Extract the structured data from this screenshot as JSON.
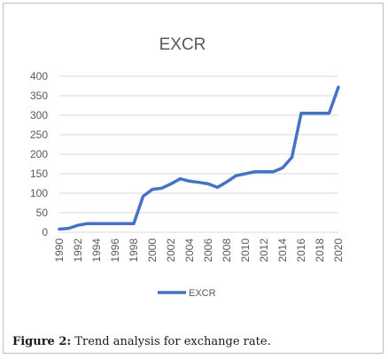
{
  "colors": {
    "line": "#4472C4",
    "grid": "#d9d9d9",
    "text": "#595959"
  },
  "caption": {
    "label": "Figure 2:",
    "text": " Trend analysis for exchange rate."
  },
  "chart_data": {
    "type": "line",
    "title": "EXCR",
    "xlabel": "",
    "ylabel": "",
    "ylim": [
      0,
      400
    ],
    "yticks": [
      0,
      50,
      100,
      150,
      200,
      250,
      300,
      350,
      400
    ],
    "x": [
      1990,
      1991,
      1992,
      1993,
      1994,
      1995,
      1996,
      1997,
      1998,
      1999,
      2000,
      2001,
      2002,
      2003,
      2004,
      2005,
      2006,
      2007,
      2008,
      2009,
      2010,
      2011,
      2012,
      2013,
      2014,
      2015,
      2016,
      2017,
      2018,
      2019,
      2020
    ],
    "xtick_labels": [
      "1990",
      "1992",
      "1994",
      "1996",
      "1998",
      "2000",
      "2002",
      "2004",
      "2006",
      "2008",
      "2010",
      "2012",
      "2014",
      "2016",
      "2018",
      "2020"
    ],
    "series": [
      {
        "name": "EXCR",
        "values": [
          8,
          10,
          18,
          22,
          22,
          22,
          22,
          22,
          22,
          92,
          110,
          113,
          124,
          137,
          131,
          128,
          124,
          115,
          129,
          145,
          150,
          155,
          155,
          155,
          165,
          192,
          305,
          305,
          305,
          305,
          372
        ]
      }
    ],
    "grid": true,
    "legend": "bottom"
  }
}
